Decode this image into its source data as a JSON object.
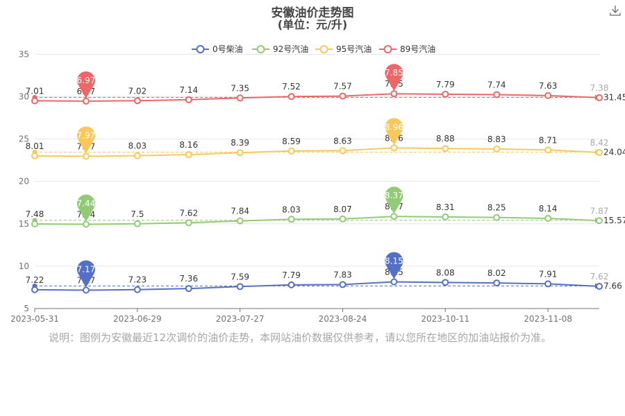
{
  "title": "安徽油价走势图",
  "subtitle": "(单位：元/升)",
  "note": "说明：图例为安徽最近12次调价的油价走势，本网站油价数据仅供参考，请以您所在地区的加油站报价为准。",
  "icons": {
    "download": "download-icon"
  },
  "chart_data": {
    "type": "line",
    "x_ticks": [
      "2023-05-31",
      "2023-06-29",
      "2023-07-27",
      "2023-08-24",
      "2023-10-11",
      "2023-11-08"
    ],
    "y_ticks": [
      5,
      10,
      15,
      20,
      25,
      30,
      35
    ],
    "ylim": [
      5,
      36.5
    ],
    "grid": true,
    "legend_position": "top-center",
    "series": [
      {
        "name": "0号柴油",
        "color": "#5470c6",
        "offset": 0,
        "values": [
          7.22,
          7.17,
          7.23,
          7.36,
          7.59,
          7.79,
          7.83,
          8.15,
          8.08,
          8.02,
          7.91,
          7.62
        ],
        "max_label": "8.15",
        "min_label": "7.17",
        "avg_label": "7.66"
      },
      {
        "name": "92号汽油",
        "color": "#91cc75",
        "offset": 7.5,
        "values": [
          7.48,
          7.44,
          7.5,
          7.62,
          7.84,
          8.03,
          8.07,
          8.37,
          8.31,
          8.25,
          8.14,
          7.87
        ],
        "max_label": "8.37",
        "min_label": "7.44",
        "avg_label": "15.57"
      },
      {
        "name": "95号汽油",
        "color": "#fac858",
        "offset": 15,
        "values": [
          8.01,
          7.97,
          8.03,
          8.16,
          8.39,
          8.59,
          8.63,
          8.96,
          8.88,
          8.83,
          8.71,
          8.42
        ],
        "max_label": "8.96",
        "min_label": "7.97",
        "avg_label": "24.04"
      },
      {
        "name": "89号汽油",
        "color": "#ee6666",
        "offset": 22.5,
        "values": [
          7.01,
          6.97,
          7.02,
          7.14,
          7.35,
          7.52,
          7.57,
          7.85,
          7.79,
          7.74,
          7.63,
          7.38
        ],
        "max_label": "7.85",
        "min_label": "6.97",
        "avg_label": "31.45"
      }
    ]
  }
}
